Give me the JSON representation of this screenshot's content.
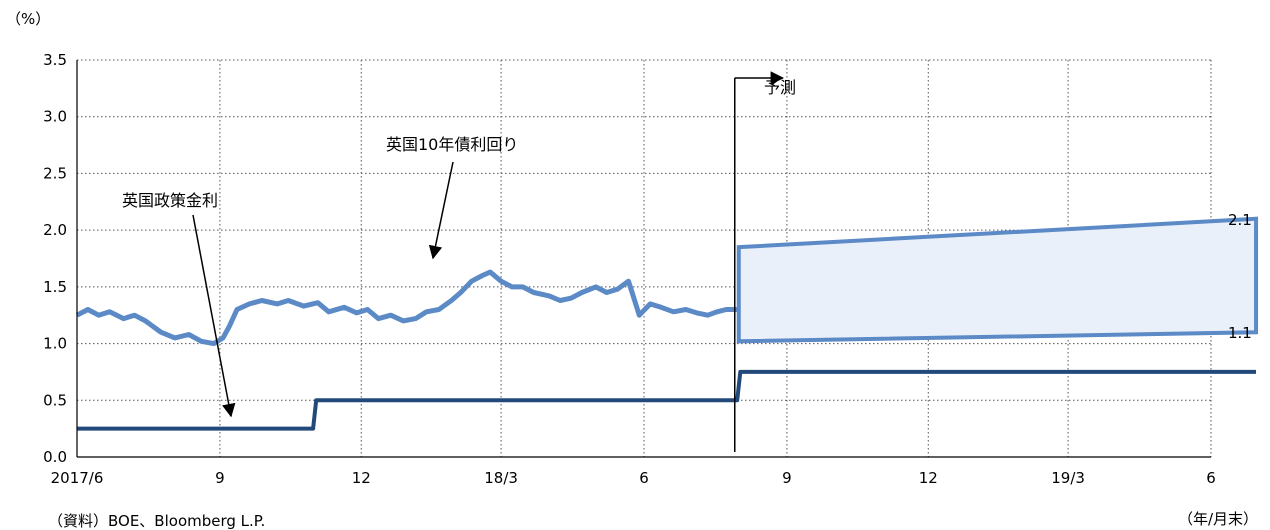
{
  "chart_data": {
    "type": "line",
    "unit_label": "（%）",
    "x_unit_label": "（年/月末）",
    "source": "（資料）BOE、Bloomberg L.P.",
    "ylim": [
      0,
      3.5
    ],
    "yticks": [
      "0.0",
      "0.5",
      "1.0",
      "1.5",
      "2.0",
      "2.5",
      "3.0",
      "3.5"
    ],
    "x_range": [
      "2017-06",
      "2019-06"
    ],
    "xticks": [
      {
        "date": "2017-06",
        "label": "2017/6"
      },
      {
        "date": "2017-09",
        "label": "9"
      },
      {
        "date": "2017-12",
        "label": "12"
      },
      {
        "date": "2018-03",
        "label": "18/3"
      },
      {
        "date": "2018-06",
        "label": "6"
      },
      {
        "date": "2018-09",
        "label": "9"
      },
      {
        "date": "2018-12",
        "label": "12"
      },
      {
        "date": "2019-03",
        "label": "19/3"
      },
      {
        "date": "2019-06",
        "label": "6"
      }
    ],
    "grid": true,
    "series": [
      {
        "name": "英国10年債利回り",
        "color": "#5b8ac6",
        "points": [
          [
            "2017-06-01",
            1.25
          ],
          [
            "2017-06-08",
            1.3
          ],
          [
            "2017-06-15",
            1.25
          ],
          [
            "2017-06-22",
            1.28
          ],
          [
            "2017-07-01",
            1.22
          ],
          [
            "2017-07-08",
            1.25
          ],
          [
            "2017-07-15",
            1.2
          ],
          [
            "2017-07-25",
            1.1
          ],
          [
            "2017-08-03",
            1.05
          ],
          [
            "2017-08-12",
            1.08
          ],
          [
            "2017-08-20",
            1.02
          ],
          [
            "2017-08-28",
            1.0
          ],
          [
            "2017-09-03",
            1.05
          ],
          [
            "2017-09-07",
            1.15
          ],
          [
            "2017-09-12",
            1.3
          ],
          [
            "2017-09-20",
            1.35
          ],
          [
            "2017-09-28",
            1.38
          ],
          [
            "2017-10-08",
            1.35
          ],
          [
            "2017-10-15",
            1.38
          ],
          [
            "2017-10-25",
            1.33
          ],
          [
            "2017-11-03",
            1.36
          ],
          [
            "2017-11-10",
            1.28
          ],
          [
            "2017-11-20",
            1.32
          ],
          [
            "2017-11-28",
            1.27
          ],
          [
            "2017-12-05",
            1.3
          ],
          [
            "2017-12-12",
            1.22
          ],
          [
            "2017-12-20",
            1.25
          ],
          [
            "2017-12-28",
            1.2
          ],
          [
            "2018-01-05",
            1.22
          ],
          [
            "2018-01-12",
            1.28
          ],
          [
            "2018-01-20",
            1.3
          ],
          [
            "2018-01-28",
            1.38
          ],
          [
            "2018-02-03",
            1.45
          ],
          [
            "2018-02-10",
            1.55
          ],
          [
            "2018-02-17",
            1.6
          ],
          [
            "2018-02-22",
            1.63
          ],
          [
            "2018-03-01",
            1.55
          ],
          [
            "2018-03-08",
            1.5
          ],
          [
            "2018-03-15",
            1.5
          ],
          [
            "2018-03-22",
            1.45
          ],
          [
            "2018-04-01",
            1.42
          ],
          [
            "2018-04-08",
            1.38
          ],
          [
            "2018-04-15",
            1.4
          ],
          [
            "2018-04-22",
            1.45
          ],
          [
            "2018-05-01",
            1.5
          ],
          [
            "2018-05-08",
            1.45
          ],
          [
            "2018-05-15",
            1.48
          ],
          [
            "2018-05-22",
            1.55
          ],
          [
            "2018-05-29",
            1.25
          ],
          [
            "2018-06-05",
            1.35
          ],
          [
            "2018-06-12",
            1.32
          ],
          [
            "2018-06-20",
            1.28
          ],
          [
            "2018-06-28",
            1.3
          ],
          [
            "2018-07-05",
            1.27
          ],
          [
            "2018-07-12",
            1.25
          ],
          [
            "2018-07-18",
            1.28
          ],
          [
            "2018-07-24",
            1.3
          ],
          [
            "2018-07-31",
            1.3
          ]
        ]
      },
      {
        "name": "英国政策金利",
        "color": "#23497a",
        "points": [
          [
            "2017-06-01",
            0.25
          ],
          [
            "2017-10-31",
            0.25
          ],
          [
            "2017-11-02",
            0.5
          ],
          [
            "2018-07-31",
            0.5
          ],
          [
            "2018-08-02",
            0.75
          ],
          [
            "2019-06-30",
            0.75
          ]
        ]
      }
    ],
    "forecast_band": {
      "start": "2018-08-01",
      "end": "2019-06-30",
      "upper": [
        1.85,
        2.1
      ],
      "lower": [
        1.02,
        1.1
      ],
      "end_labels": [
        "2.1",
        "1.1"
      ]
    },
    "annotations": {
      "yield": "英国10年債利回り",
      "policy": "英国政策金利",
      "forecast": "予測"
    }
  }
}
